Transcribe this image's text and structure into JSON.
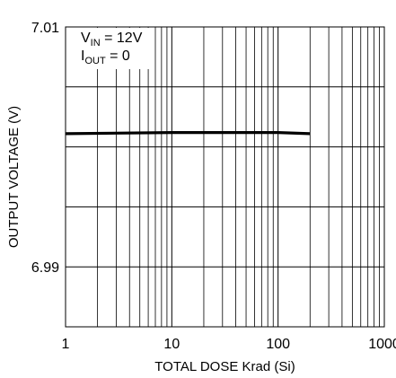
{
  "chart_data": {
    "type": "line",
    "xlabel": "TOTAL DOSE Krad (Si)",
    "ylabel": "OUTPUT VOLTAGE (V)",
    "x_scale": "log",
    "xlim": [
      1,
      1000
    ],
    "ylim": [
      6.985,
      7.01
    ],
    "x_ticks": [
      1,
      10,
      100,
      1000
    ],
    "x_tick_labels": [
      "1",
      "10",
      "100",
      "1000"
    ],
    "y_ticks": [
      7.01,
      6.99
    ],
    "y_tick_labels": [
      "7.01",
      "6.99"
    ],
    "grid": true,
    "annotations": [
      {
        "main": "V",
        "sub": "IN",
        "rest": " = 12V"
      },
      {
        "main": "I",
        "sub": "OUT",
        "rest": " = 0"
      }
    ],
    "series": [
      {
        "x": [
          1,
          10,
          100,
          200
        ],
        "y": [
          7.0011,
          7.0012,
          7.0012,
          7.0011
        ]
      }
    ]
  }
}
